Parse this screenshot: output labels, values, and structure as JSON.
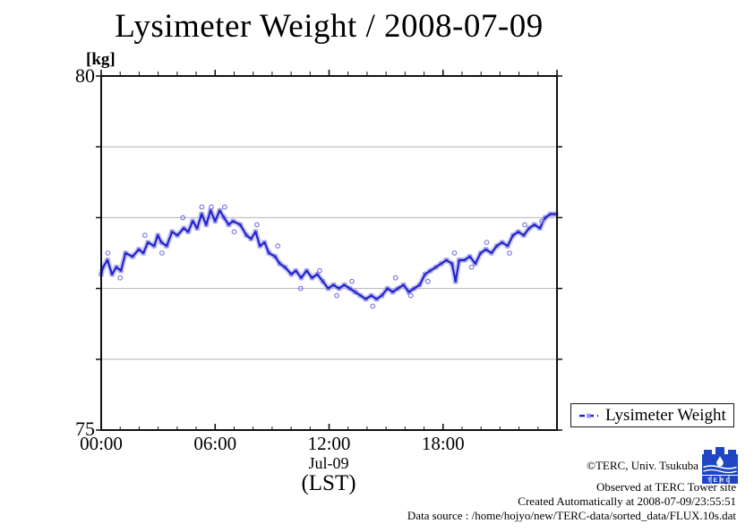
{
  "chart_data": {
    "type": "line",
    "title": "Lysimeter Weight / 2008-07-09",
    "y_unit_label": "[kg]",
    "x_date_label": "Jul-09",
    "x_axis_label": "(LST)",
    "ylim": [
      75,
      80
    ],
    "xlim_hours": [
      0,
      24
    ],
    "yticks": [
      {
        "value": 80,
        "label": "80"
      },
      {
        "value": 75,
        "label": "75"
      }
    ],
    "gridlines_y": [
      76,
      77,
      78,
      79
    ],
    "xticks": [
      {
        "hour": 0,
        "label": "00:00"
      },
      {
        "hour": 6,
        "label": "06:00"
      },
      {
        "hour": 12,
        "label": "12:00"
      },
      {
        "hour": 18,
        "label": "18:00"
      }
    ],
    "minor_xtick_interval_hours": 1,
    "grid": true,
    "legend": {
      "position": "bottom-right",
      "entries": [
        {
          "label": "Lysimeter Weight"
        }
      ]
    },
    "series": [
      {
        "name": "Lysimeter Weight",
        "x_hours": [
          0.0,
          0.1,
          0.33,
          0.57,
          0.8,
          1.04,
          1.28,
          1.65,
          1.98,
          2.22,
          2.46,
          2.79,
          2.98,
          3.17,
          3.45,
          3.73,
          4.01,
          4.35,
          4.58,
          4.82,
          5.05,
          5.29,
          5.53,
          5.76,
          6.0,
          6.24,
          6.47,
          6.71,
          6.94,
          7.32,
          7.65,
          7.89,
          8.13,
          8.36,
          8.6,
          8.83,
          9.16,
          9.4,
          9.68,
          10.01,
          10.25,
          10.53,
          10.82,
          11.1,
          11.38,
          11.67,
          11.95,
          12.23,
          12.52,
          12.8,
          13.08,
          13.37,
          13.65,
          13.93,
          14.22,
          14.5,
          14.78,
          15.07,
          15.35,
          15.63,
          15.92,
          16.2,
          16.48,
          16.77,
          17.05,
          17.33,
          17.62,
          17.9,
          18.18,
          18.47,
          18.66,
          18.85,
          19.13,
          19.41,
          19.7,
          19.98,
          20.26,
          20.55,
          20.83,
          21.11,
          21.4,
          21.68,
          21.96,
          22.25,
          22.53,
          22.81,
          23.1,
          23.38,
          23.66,
          23.95
        ],
        "y_kg": [
          77.2,
          77.3,
          77.4,
          77.2,
          77.3,
          77.25,
          77.5,
          77.45,
          77.55,
          77.5,
          77.65,
          77.6,
          77.75,
          77.65,
          77.6,
          77.8,
          77.75,
          77.85,
          77.8,
          77.95,
          77.85,
          78.05,
          77.9,
          78.1,
          77.95,
          78.1,
          78.0,
          77.9,
          77.95,
          77.9,
          77.75,
          77.7,
          77.8,
          77.6,
          77.65,
          77.5,
          77.45,
          77.35,
          77.3,
          77.2,
          77.25,
          77.15,
          77.25,
          77.15,
          77.2,
          77.1,
          77.0,
          77.05,
          77.0,
          77.05,
          77.0,
          76.95,
          76.9,
          76.85,
          76.9,
          76.85,
          76.9,
          77.0,
          76.95,
          77.0,
          77.05,
          76.95,
          77.0,
          77.05,
          77.2,
          77.25,
          77.3,
          77.35,
          77.4,
          77.35,
          77.1,
          77.4,
          77.4,
          77.45,
          77.35,
          77.5,
          77.55,
          77.5,
          77.6,
          77.65,
          77.6,
          77.75,
          77.8,
          77.75,
          77.85,
          77.9,
          77.85,
          78.0,
          78.05,
          78.05
        ]
      }
    ],
    "outliers": {
      "x_hours": [
        0.35,
        1.0,
        2.3,
        3.2,
        4.3,
        5.3,
        5.8,
        6.5,
        7.0,
        8.2,
        9.3,
        10.5,
        11.5,
        12.4,
        13.2,
        14.3,
        15.5,
        16.3,
        17.2,
        18.6,
        19.5,
        20.3,
        21.5,
        22.3,
        23.2
      ],
      "y_kg": [
        77.5,
        77.15,
        77.75,
        77.5,
        78.0,
        78.15,
        78.15,
        78.15,
        77.8,
        77.9,
        77.6,
        77.0,
        77.25,
        76.9,
        77.1,
        76.75,
        77.15,
        76.9,
        77.1,
        77.5,
        77.3,
        77.65,
        77.5,
        77.9,
        77.95
      ]
    },
    "colors": {
      "line": "#2222cc",
      "marker_halo": "#9595ee",
      "outlier_stroke": "#7b7be0",
      "grid": "#b3b3b3",
      "frame": "#111111"
    }
  },
  "legend": {
    "label": "Lysimeter Weight"
  },
  "annotations": {
    "copyright": "©TERC, Univ. Tsukuba",
    "observed": "Observed at TERC Tower site",
    "created": "Created Automatically at 2008-07-09/23:55:51",
    "data_source": "Data source : /home/hojyo/new/TERC-data/sorted_data/FLUX.10s.dat"
  },
  "branding": {
    "logo_text": "TERC",
    "logo_color": "#1e46c4"
  }
}
